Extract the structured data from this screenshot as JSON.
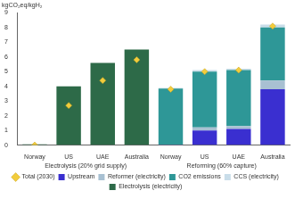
{
  "chart_data": {
    "type": "bar",
    "stacked": true,
    "y_label": "kgCO₂eq/kgH₂",
    "categories": [
      "Norway",
      "US",
      "UAE",
      "Australia",
      "Norway",
      "US",
      "UAE",
      "Australia"
    ],
    "groups": [
      {
        "label": "Electrolysis (20% grid supply)",
        "count": 4
      },
      {
        "label": "Reforming (60% capture)",
        "count": 4
      }
    ],
    "series": [
      {
        "name": "Upstream",
        "color": "#3a2fd0",
        "values": [
          0,
          0,
          0,
          0,
          0.02,
          1.0,
          1.1,
          3.8
        ]
      },
      {
        "name": "Reformer (electricity)",
        "color": "#a8c0d2",
        "values": [
          0,
          0,
          0,
          0,
          0.02,
          0.2,
          0.2,
          0.6
        ]
      },
      {
        "name": "CO2 emissions",
        "color": "#2e9797",
        "values": [
          0,
          0,
          0,
          0,
          3.8,
          3.8,
          3.8,
          3.6
        ]
      },
      {
        "name": "CCS (electricity)",
        "color": "#c9dde9",
        "values": [
          0,
          0,
          0,
          0,
          0.05,
          0.1,
          0.1,
          0.2
        ]
      },
      {
        "name": "Electrolysis (electricity)",
        "color": "#2d6a48",
        "values": [
          0.05,
          4.0,
          5.6,
          6.5,
          0,
          0,
          0,
          0
        ]
      },
      {
        "name": "Total (2030)",
        "type": "line",
        "marker": "diamond",
        "line_style": "none",
        "color": "#f2cc3c",
        "values": [
          0,
          2.7,
          4.4,
          5.8,
          3.8,
          5.0,
          5.1,
          8.1
        ]
      }
    ],
    "ylim": [
      0,
      9
    ],
    "yticks": [
      0,
      1,
      2,
      3,
      4,
      5,
      6,
      7,
      8,
      9
    ],
    "grid": false,
    "legend": "bottom"
  }
}
